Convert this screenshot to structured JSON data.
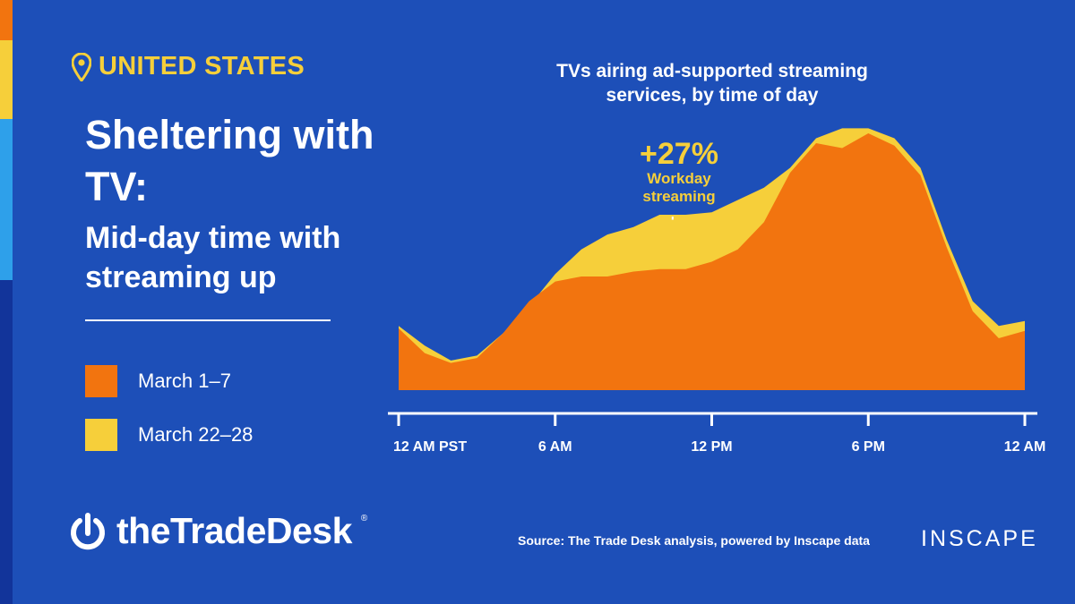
{
  "location": "UNITED STATES",
  "headline": "Sheltering with TV:",
  "subhead": "Mid-day time with streaming up",
  "legend": [
    {
      "label": "March 1–7",
      "color": "#f2740f"
    },
    {
      "label": "March 22–28",
      "color": "#f6cf3a"
    }
  ],
  "annotation": {
    "value": "+27%",
    "text": "Workday streaming"
  },
  "brand": {
    "name": "theTradeDesk",
    "mark": "®"
  },
  "source": "Source: The Trade Desk analysis, powered by Inscape data",
  "partner_logo": "INSCAPE",
  "colors": {
    "background": "#1d4fb8",
    "orange": "#f2740f",
    "yellow": "#f6cf3a",
    "accent_stripes": [
      "#f2740f",
      "#f6cf3a",
      "#2ea0ea",
      "#12349a"
    ]
  },
  "chart_data": {
    "type": "area",
    "title": "TVs airing ad-supported streaming services, by time of day",
    "x_tick_labels": [
      "12 AM PST",
      "6 AM",
      "12 PM",
      "6 PM",
      "12 AM"
    ],
    "x_tick_hours": [
      0,
      6,
      12,
      18,
      24
    ],
    "x_unit": "hour of day (PST)",
    "y_axis": "relative share of TVs (unlabeled)",
    "xlim": [
      0,
      24
    ],
    "ylim": [
      0,
      100
    ],
    "grid": false,
    "series": [
      {
        "name": "March 1–7",
        "color": "#f2740f",
        "points": [
          [
            0,
            25
          ],
          [
            1,
            15
          ],
          [
            2,
            11
          ],
          [
            3,
            13
          ],
          [
            4,
            23
          ],
          [
            5,
            36
          ],
          [
            6,
            44
          ],
          [
            7,
            46
          ],
          [
            8,
            46
          ],
          [
            9,
            48
          ],
          [
            10,
            49
          ],
          [
            11,
            49
          ],
          [
            12,
            52
          ],
          [
            13,
            57
          ],
          [
            14,
            68
          ],
          [
            15,
            88
          ],
          [
            16,
            100
          ],
          [
            17,
            98
          ],
          [
            18,
            104
          ],
          [
            19,
            99
          ],
          [
            20,
            87
          ],
          [
            21,
            58
          ],
          [
            22,
            32
          ],
          [
            23,
            21
          ],
          [
            24,
            24
          ]
        ]
      },
      {
        "name": "March 22–28",
        "color": "#f6cf3a",
        "points": [
          [
            0,
            26
          ],
          [
            1,
            18
          ],
          [
            2,
            12
          ],
          [
            3,
            14
          ],
          [
            4,
            23
          ],
          [
            5,
            34
          ],
          [
            6,
            47
          ],
          [
            7,
            57
          ],
          [
            8,
            63
          ],
          [
            9,
            66
          ],
          [
            10,
            71
          ],
          [
            11,
            71
          ],
          [
            12,
            72
          ],
          [
            13,
            77
          ],
          [
            14,
            82
          ],
          [
            15,
            90
          ],
          [
            16,
            102
          ],
          [
            17,
            106
          ],
          [
            18,
            106
          ],
          [
            19,
            102
          ],
          [
            20,
            90
          ],
          [
            21,
            61
          ],
          [
            22,
            36
          ],
          [
            23,
            26
          ],
          [
            24,
            28
          ]
        ]
      }
    ]
  }
}
